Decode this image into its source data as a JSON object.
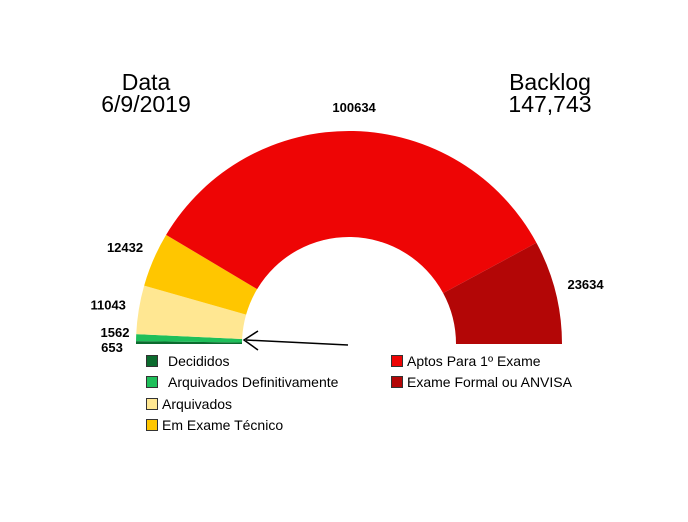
{
  "header": {
    "date_label": "Data",
    "date_value": "6/9/2019",
    "backlog_label": "Backlog",
    "backlog_value": "147,743"
  },
  "chart_data": {
    "type": "pie",
    "subtype": "half-donut",
    "categories": [
      "Decididos",
      "Arquivados Definitivamente",
      "Arquivados",
      "Em Exame Técnico",
      "Aptos Para 1º Exame",
      "Exame Formal ou ANVISA"
    ],
    "values": [
      653,
      1562,
      11043,
      12432,
      100634,
      23634
    ],
    "colors": [
      "#0b6b2e",
      "#1fbf5a",
      "#ffe792",
      "#ffc600",
      "#ee0505",
      "#b30606"
    ],
    "data_labels": [
      "653",
      "1562",
      "11043",
      "12432",
      "100634",
      "23634"
    ],
    "annotation": "arrow pointing to Decididos / Arquivados Definitivamente segments",
    "legend_position": "bottom"
  }
}
